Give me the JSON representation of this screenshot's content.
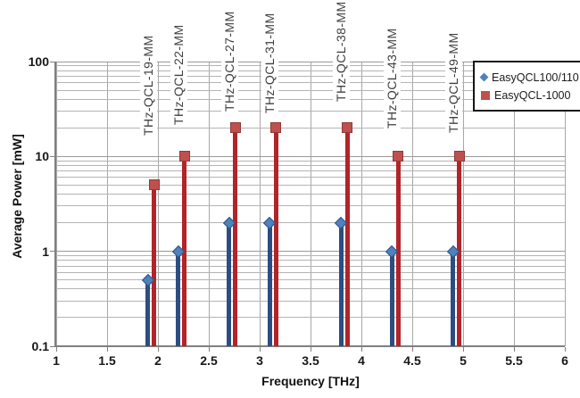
{
  "chart_data": {
    "type": "bar",
    "title": "",
    "xlabel": "Frequency [THz]",
    "ylabel": "Average Power [mW]",
    "yscale": "log",
    "xlim": [
      1,
      6
    ],
    "ylim": [
      0.1,
      100
    ],
    "grid": true,
    "legend_position": "top-right",
    "x": [
      1.9,
      2.2,
      2.7,
      3.1,
      3.8,
      4.3,
      4.9
    ],
    "point_labels": [
      "THz-QCL-19-MM",
      "THz-QCL-22-MM",
      "THz-QCL-27-MM",
      "THz-QCL-31-MM",
      "THz-QCL-38-MM",
      "THz-QCL-43-MM",
      "THz-QCL-49-MM"
    ],
    "series": [
      {
        "name": "EasyQCL100/110",
        "marker": "diamond",
        "marker_color": "#4F81BD",
        "marker_border": "#2E5385",
        "stem_color": "#2D4D82",
        "values": [
          0.5,
          1,
          2,
          2,
          2,
          1,
          1
        ]
      },
      {
        "name": "EasyQCL-1000",
        "marker": "square",
        "marker_color": "#C0504D",
        "marker_border": "#8E3A38",
        "stem_color": "#B22428",
        "values": [
          5,
          10,
          20,
          20,
          20,
          10,
          10
        ]
      }
    ],
    "x_ticks": {
      "values": [
        1,
        1.5,
        2,
        2.5,
        3,
        3.5,
        4,
        4.5,
        5,
        5.5,
        6
      ],
      "labels": [
        "1",
        "1.5",
        "2",
        "2.5",
        "3",
        "3.5",
        "4",
        "4.5",
        "5",
        "5.5",
        "6"
      ]
    },
    "y_ticks": {
      "values": [
        100,
        10,
        1,
        0.1
      ],
      "labels": [
        "100",
        "10",
        "1",
        "0.1"
      ]
    }
  }
}
